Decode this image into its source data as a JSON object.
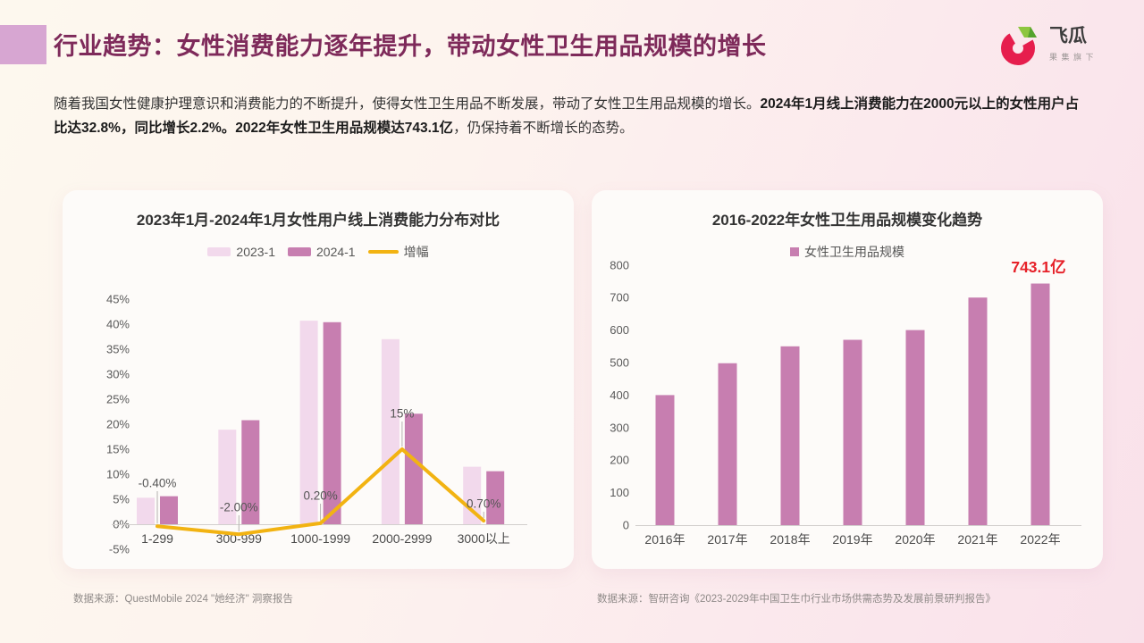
{
  "header": {
    "title": "行业趋势：女性消费能力逐年提升，带动女性卫生用品规模的增长",
    "accent_color": "#d7a6d2",
    "logo": {
      "brand": "飞瓜",
      "subtitle": "果集旗下",
      "red": "#e61e4d",
      "green": "#8dc63f",
      "green_dark": "#55a32e"
    }
  },
  "intro": {
    "text_regular_1": "随着我国女性健康护理意识和消费能力的不断提升，使得女性卫生用品不断发展，带动了女性卫生用品规模的增长。",
    "text_bold": "2024年1月线上消费能力在2000元以上的女性用户占比达32.8%，同比增长2.2%。2022年女性卫生用品规模达743.1亿",
    "text_regular_2": "，仍保持着不断增长的态势。"
  },
  "chart_data": [
    {
      "type": "bar+line",
      "title": "2023年1月-2024年1月女性用户线上消费能力分布对比",
      "categories": [
        "1-299",
        "300-999",
        "1000-1999",
        "2000-2999",
        "3000以上"
      ],
      "series": [
        {
          "name": "2023-1",
          "kind": "bar",
          "color": "#f2d9ec",
          "values": [
            5.3,
            18.9,
            40.7,
            37,
            11.5
          ]
        },
        {
          "name": "2024-1",
          "kind": "bar",
          "color": "#c77eb0",
          "values": [
            5.6,
            20.8,
            40.4,
            22.1,
            10.6
          ]
        },
        {
          "name": "增幅",
          "kind": "line",
          "color": "#f2b312",
          "values": [
            -0.4,
            -2,
            0.2,
            15,
            0.7
          ],
          "point_labels": [
            "-0.40%",
            "-2.00%",
            "0.20%",
            "15%",
            "0.70%"
          ]
        }
      ],
      "y_tick_labels": [
        "45%",
        "40%",
        "35%",
        "30%",
        "25%",
        "20%",
        "15%",
        "10%",
        "5%",
        "0%",
        "-5%"
      ],
      "ylim": [
        -5,
        45
      ],
      "grid": false,
      "legend_position": "top",
      "source": "数据来源：QuestMobile 2024 \"她经济\" 洞察报告"
    },
    {
      "type": "bar",
      "title": "2016-2022年女性卫生用品规模变化趋势",
      "legend": "女性卫生用品规模",
      "categories": [
        "2016年",
        "2017年",
        "2018年",
        "2019年",
        "2020年",
        "2021年",
        "2022年"
      ],
      "values": [
        400,
        498,
        550,
        570,
        600,
        700,
        743.1
      ],
      "bar_color": "#c77eb0",
      "y_ticks": [
        800,
        700,
        600,
        500,
        400,
        300,
        200,
        100,
        0
      ],
      "ylim": [
        0,
        800
      ],
      "annotation": {
        "text": "743.1亿",
        "color": "#e62129"
      },
      "grid": false,
      "legend_position": "top",
      "source": "数据来源：智研咨询《2023-2029年中国卫生巾行业市场供需态势及发展前景研判报告》"
    }
  ]
}
